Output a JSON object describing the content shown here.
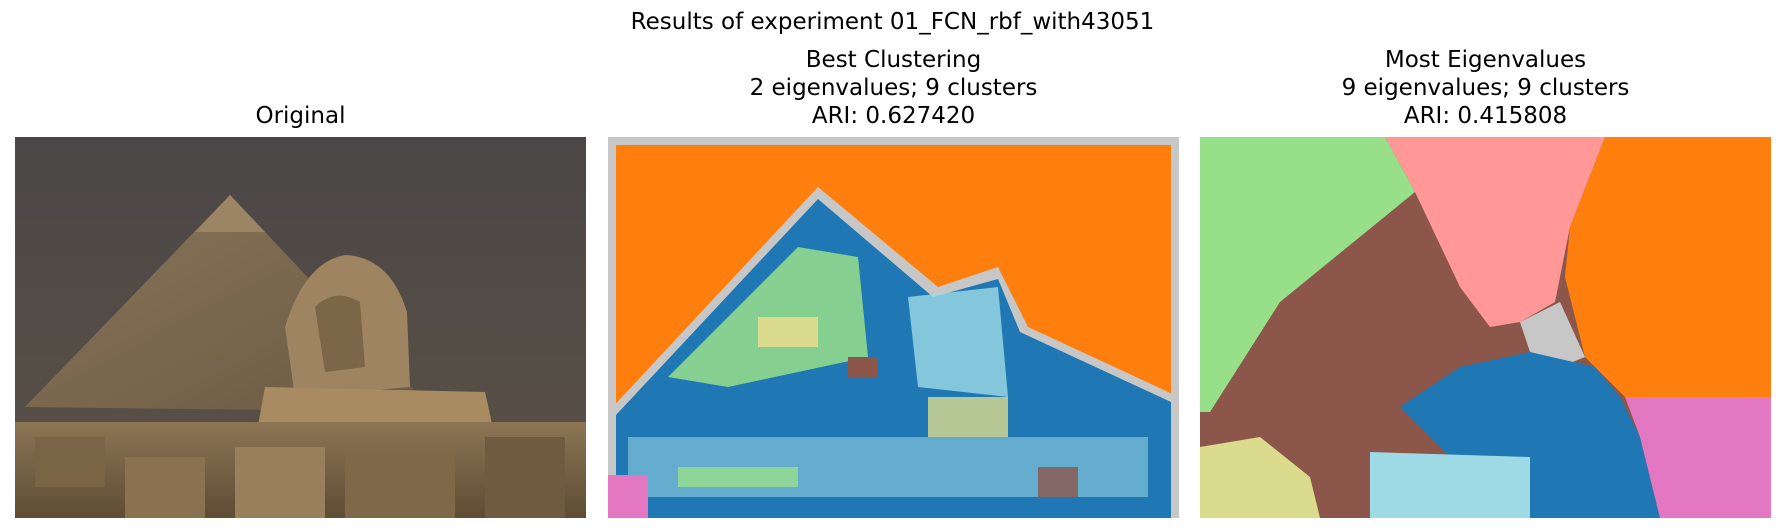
{
  "figure": {
    "suptitle": "Results of experiment 01_FCN_rbf_with43051"
  },
  "panels": [
    {
      "title_lines": [
        "Original"
      ],
      "content": "photograph: pyramid and sphinx"
    },
    {
      "title_lines": [
        "Best Clustering",
        "2 eigenvalues; 9 clusters",
        "ARI: 0.627420"
      ],
      "content": "segmentation map"
    },
    {
      "title_lines": [
        "Most Eigenvalues",
        "9 eigenvalues; 9 clusters",
        "ARI: 0.415808"
      ],
      "content": "segmentation map"
    }
  ],
  "cluster_colors": {
    "orange": "#ff7f0e",
    "gray": "#c7c7c7",
    "blue": "#1f77b4",
    "light_blue": "#9edae5",
    "light_green": "#98df8a",
    "olive": "#dbdb8d",
    "brown": "#8c564b",
    "pink": "#e377c2",
    "salmon": "#ff9896"
  }
}
